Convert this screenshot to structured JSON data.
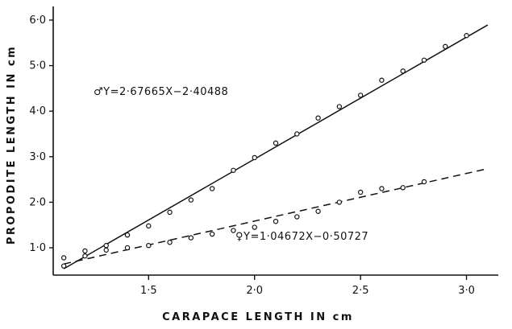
{
  "chart_data": {
    "type": "scatter",
    "title": "",
    "xlabel": "CARAPACE LENGTH IN cm",
    "ylabel": "PROPODITE LENGTH IN cm",
    "xlim": [
      1.05,
      3.15
    ],
    "ylim": [
      0.4,
      6.3
    ],
    "x_ticks": [
      "1·5",
      "2·0",
      "2·5",
      "3·0"
    ],
    "x_tick_values": [
      1.5,
      2.0,
      2.5,
      3.0
    ],
    "y_ticks": [
      "1·0",
      "2·0",
      "3·0",
      "4·0",
      "5·0",
      "6·0"
    ],
    "y_tick_values": [
      1.0,
      2.0,
      3.0,
      4.0,
      5.0,
      6.0
    ],
    "grid": false,
    "legend": "none",
    "series": [
      {
        "name": "male",
        "marker": "open-circle",
        "points": [
          [
            1.1,
            0.78
          ],
          [
            1.2,
            0.93
          ],
          [
            1.3,
            1.05
          ],
          [
            1.4,
            1.28
          ],
          [
            1.5,
            1.48
          ],
          [
            1.6,
            1.78
          ],
          [
            1.7,
            2.05
          ],
          [
            1.8,
            2.3
          ],
          [
            1.9,
            2.7
          ],
          [
            2.0,
            2.98
          ],
          [
            2.1,
            3.3
          ],
          [
            2.2,
            3.5
          ],
          [
            2.3,
            3.85
          ],
          [
            2.4,
            4.1
          ],
          [
            2.5,
            4.35
          ],
          [
            2.6,
            4.68
          ],
          [
            2.7,
            4.88
          ],
          [
            2.8,
            5.12
          ],
          [
            2.9,
            5.42
          ],
          [
            3.0,
            5.66
          ]
        ],
        "fit": {
          "slope": 2.67665,
          "intercept": -2.40488,
          "style": "solid",
          "x_range": [
            1.1,
            3.1
          ]
        },
        "annotation": "♂Y=2·67665X−2·40488"
      },
      {
        "name": "female",
        "marker": "open-circle",
        "points": [
          [
            1.1,
            0.6
          ],
          [
            1.2,
            0.82
          ],
          [
            1.3,
            0.95
          ],
          [
            1.4,
            1.0
          ],
          [
            1.5,
            1.05
          ],
          [
            1.6,
            1.12
          ],
          [
            1.7,
            1.22
          ],
          [
            1.8,
            1.3
          ],
          [
            1.9,
            1.38
          ],
          [
            2.0,
            1.45
          ],
          [
            2.1,
            1.58
          ],
          [
            2.2,
            1.68
          ],
          [
            2.3,
            1.8
          ],
          [
            2.4,
            2.0
          ],
          [
            2.5,
            2.22
          ],
          [
            2.6,
            2.3
          ],
          [
            2.7,
            2.32
          ],
          [
            2.8,
            2.45
          ]
        ],
        "fit": {
          "slope": 1.04672,
          "intercept": -0.50727,
          "style": "dashed",
          "x_range": [
            1.1,
            3.1
          ]
        },
        "annotation": "♀Y=1·04672X−0·50727"
      }
    ]
  }
}
